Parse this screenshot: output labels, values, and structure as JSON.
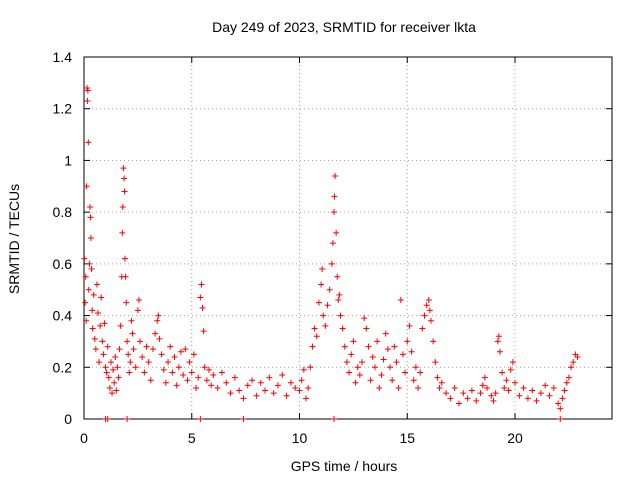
{
  "chart_data": {
    "type": "scatter",
    "title": "Day 249 of 2023, SRMTID for receiver lkta",
    "xlabel": "GPS time / hours",
    "ylabel": "SRMTID / TECUs",
    "xlim": [
      0,
      24.5
    ],
    "ylim": [
      0,
      1.4
    ],
    "xticks": [
      0,
      5,
      10,
      15,
      20
    ],
    "yticks": [
      0,
      0.2,
      0.4,
      0.6,
      0.8,
      1,
      1.2,
      1.4
    ],
    "xtick_labels": [
      "0",
      "5",
      "10",
      "15",
      "20"
    ],
    "ytick_labels": [
      "0",
      "0.2",
      "0.4",
      "0.6",
      "0.8",
      "1",
      "1.2",
      "1.4"
    ],
    "grid": true,
    "marker": "+",
    "color": "#ff0000",
    "series": [
      {
        "name": "SRMTID",
        "points": [
          [
            0.02,
            0.62
          ],
          [
            0.05,
            0.45
          ],
          [
            0.08,
            0.55
          ],
          [
            0.1,
            0.38
          ],
          [
            0.12,
            0.9
          ],
          [
            0.14,
            1.28
          ],
          [
            0.16,
            1.23
          ],
          [
            0.18,
            1.27
          ],
          [
            0.2,
            1.07
          ],
          [
            0.22,
            0.5
          ],
          [
            0.25,
            0.6
          ],
          [
            0.28,
            0.82
          ],
          [
            0.3,
            0.78
          ],
          [
            0.32,
            0.7
          ],
          [
            0.35,
            0.58
          ],
          [
            0.38,
            0.42
          ],
          [
            0.4,
            0.35
          ],
          [
            0.45,
            0.48
          ],
          [
            0.5,
            0.31
          ],
          [
            0.55,
            0.27
          ],
          [
            0.6,
            0.52
          ],
          [
            0.65,
            0.41
          ],
          [
            0.7,
            0.22
          ],
          [
            0.75,
            0.36
          ],
          [
            0.8,
            0.47
          ],
          [
            0.85,
            0.3
          ],
          [
            0.9,
            0.25
          ],
          [
            0.95,
            0.37
          ],
          [
            1.0,
            0.2
          ],
          [
            1.05,
            0.18
          ],
          [
            1.1,
            0.28
          ],
          [
            1.15,
            0.16
          ],
          [
            1.2,
            0.12
          ],
          [
            1.25,
            0.22
          ],
          [
            1.3,
            0.1
          ],
          [
            1.35,
            0.19
          ],
          [
            1.4,
            0.14
          ],
          [
            1.45,
            0.24
          ],
          [
            1.5,
            0.11
          ],
          [
            1.55,
            0.2
          ],
          [
            1.6,
            0.16
          ],
          [
            1.65,
            0.27
          ],
          [
            1.7,
            0.36
          ],
          [
            1.75,
            0.55
          ],
          [
            1.78,
            0.72
          ],
          [
            1.8,
            0.82
          ],
          [
            1.83,
            0.97
          ],
          [
            1.86,
            0.93
          ],
          [
            1.88,
            0.88
          ],
          [
            1.9,
            0.62
          ],
          [
            1.93,
            0.55
          ],
          [
            1.96,
            0.45
          ],
          [
            2.0,
            0.3
          ],
          [
            2.05,
            0.25
          ],
          [
            2.1,
            0.18
          ],
          [
            2.15,
            0.22
          ],
          [
            2.2,
            0.38
          ],
          [
            2.25,
            0.33
          ],
          [
            2.3,
            0.27
          ],
          [
            2.4,
            0.2
          ],
          [
            2.5,
            0.42
          ],
          [
            2.55,
            0.46
          ],
          [
            2.6,
            0.3
          ],
          [
            2.7,
            0.24
          ],
          [
            2.8,
            0.18
          ],
          [
            2.9,
            0.28
          ],
          [
            3.0,
            0.22
          ],
          [
            3.1,
            0.15
          ],
          [
            3.2,
            0.27
          ],
          [
            3.3,
            0.33
          ],
          [
            3.4,
            0.38
          ],
          [
            3.45,
            0.4
          ],
          [
            3.5,
            0.31
          ],
          [
            3.6,
            0.25
          ],
          [
            3.7,
            0.19
          ],
          [
            3.8,
            0.14
          ],
          [
            3.9,
            0.22
          ],
          [
            4.0,
            0.28
          ],
          [
            4.1,
            0.18
          ],
          [
            4.2,
            0.24
          ],
          [
            4.3,
            0.13
          ],
          [
            4.4,
            0.2
          ],
          [
            4.5,
            0.26
          ],
          [
            4.6,
            0.17
          ],
          [
            4.7,
            0.27
          ],
          [
            4.8,
            0.15
          ],
          [
            4.9,
            0.22
          ],
          [
            5.0,
            0.18
          ],
          [
            5.1,
            0.25
          ],
          [
            5.2,
            0.12
          ],
          [
            5.3,
            0.16
          ],
          [
            5.4,
            0.47
          ],
          [
            5.45,
            0.52
          ],
          [
            5.5,
            0.43
          ],
          [
            5.55,
            0.34
          ],
          [
            5.6,
            0.2
          ],
          [
            5.7,
            0.15
          ],
          [
            5.8,
            0.19
          ],
          [
            5.9,
            0.13
          ],
          [
            6.0,
            0.17
          ],
          [
            6.2,
            0.12
          ],
          [
            6.4,
            0.18
          ],
          [
            6.6,
            0.14
          ],
          [
            6.8,
            0.1
          ],
          [
            7.0,
            0.16
          ],
          [
            7.2,
            0.11
          ],
          [
            7.4,
            0.08
          ],
          [
            7.6,
            0.13
          ],
          [
            7.8,
            0.15
          ],
          [
            8.0,
            0.09
          ],
          [
            8.2,
            0.14
          ],
          [
            8.4,
            0.11
          ],
          [
            8.6,
            0.16
          ],
          [
            8.8,
            0.1
          ],
          [
            9.0,
            0.13
          ],
          [
            9.2,
            0.17
          ],
          [
            9.4,
            0.09
          ],
          [
            9.6,
            0.14
          ],
          [
            9.8,
            0.12
          ],
          [
            10.0,
            0.11
          ],
          [
            10.1,
            0.15
          ],
          [
            10.2,
            0.19
          ],
          [
            10.3,
            0.08
          ],
          [
            10.4,
            0.12
          ],
          [
            10.5,
            0.2
          ],
          [
            10.6,
            0.28
          ],
          [
            10.7,
            0.35
          ],
          [
            10.8,
            0.32
          ],
          [
            10.9,
            0.45
          ],
          [
            11.0,
            0.52
          ],
          [
            11.05,
            0.58
          ],
          [
            11.1,
            0.4
          ],
          [
            11.2,
            0.36
          ],
          [
            11.3,
            0.44
          ],
          [
            11.4,
            0.5
          ],
          [
            11.5,
            0.6
          ],
          [
            11.55,
            0.68
          ],
          [
            11.6,
            0.8
          ],
          [
            11.62,
            0.86
          ],
          [
            11.65,
            0.94
          ],
          [
            11.7,
            0.72
          ],
          [
            11.75,
            0.55
          ],
          [
            11.8,
            0.46
          ],
          [
            11.85,
            0.48
          ],
          [
            11.9,
            0.4
          ],
          [
            12.0,
            0.35
          ],
          [
            12.1,
            0.28
          ],
          [
            12.2,
            0.22
          ],
          [
            12.3,
            0.18
          ],
          [
            12.4,
            0.25
          ],
          [
            12.5,
            0.3
          ],
          [
            12.6,
            0.14
          ],
          [
            12.7,
            0.2
          ],
          [
            12.8,
            0.17
          ],
          [
            12.9,
            0.22
          ],
          [
            13.0,
            0.39
          ],
          [
            13.1,
            0.35
          ],
          [
            13.2,
            0.28
          ],
          [
            13.3,
            0.15
          ],
          [
            13.4,
            0.24
          ],
          [
            13.5,
            0.2
          ],
          [
            13.6,
            0.3
          ],
          [
            13.7,
            0.12
          ],
          [
            13.8,
            0.17
          ],
          [
            13.9,
            0.23
          ],
          [
            14.0,
            0.33
          ],
          [
            14.1,
            0.27
          ],
          [
            14.2,
            0.2
          ],
          [
            14.3,
            0.15
          ],
          [
            14.4,
            0.28
          ],
          [
            14.5,
            0.22
          ],
          [
            14.6,
            0.12
          ],
          [
            14.7,
            0.46
          ],
          [
            14.8,
            0.25
          ],
          [
            14.9,
            0.18
          ],
          [
            15.0,
            0.3
          ],
          [
            15.1,
            0.36
          ],
          [
            15.2,
            0.26
          ],
          [
            15.3,
            0.15
          ],
          [
            15.4,
            0.2
          ],
          [
            15.5,
            0.12
          ],
          [
            15.6,
            0.18
          ],
          [
            15.7,
            0.35
          ],
          [
            15.8,
            0.4
          ],
          [
            15.9,
            0.44
          ],
          [
            16.0,
            0.46
          ],
          [
            16.05,
            0.42
          ],
          [
            16.1,
            0.38
          ],
          [
            16.2,
            0.3
          ],
          [
            16.3,
            0.22
          ],
          [
            16.4,
            0.16
          ],
          [
            16.5,
            0.12
          ],
          [
            16.6,
            0.14
          ],
          [
            16.8,
            0.1
          ],
          [
            17.0,
            0.08
          ],
          [
            17.2,
            0.12
          ],
          [
            17.4,
            0.06
          ],
          [
            17.6,
            0.1
          ],
          [
            17.8,
            0.08
          ],
          [
            18.0,
            0.11
          ],
          [
            18.2,
            0.07
          ],
          [
            18.4,
            0.1
          ],
          [
            18.5,
            0.13
          ],
          [
            18.6,
            0.16
          ],
          [
            18.7,
            0.12
          ],
          [
            18.9,
            0.09
          ],
          [
            19.0,
            0.07
          ],
          [
            19.1,
            0.1
          ],
          [
            19.2,
            0.3
          ],
          [
            19.25,
            0.32
          ],
          [
            19.3,
            0.26
          ],
          [
            19.4,
            0.18
          ],
          [
            19.5,
            0.12
          ],
          [
            19.6,
            0.15
          ],
          [
            19.7,
            0.11
          ],
          [
            19.8,
            0.19
          ],
          [
            19.9,
            0.22
          ],
          [
            20.0,
            0.14
          ],
          [
            20.2,
            0.09
          ],
          [
            20.4,
            0.12
          ],
          [
            20.6,
            0.08
          ],
          [
            20.8,
            0.11
          ],
          [
            21.0,
            0.07
          ],
          [
            21.2,
            0.1
          ],
          [
            21.4,
            0.13
          ],
          [
            21.6,
            0.09
          ],
          [
            21.8,
            0.12
          ],
          [
            22.0,
            0.06
          ],
          [
            22.1,
            0.04
          ],
          [
            22.2,
            0.08
          ],
          [
            22.3,
            0.11
          ],
          [
            22.4,
            0.14
          ],
          [
            22.5,
            0.16
          ],
          [
            22.6,
            0.2
          ],
          [
            22.7,
            0.22
          ],
          [
            22.8,
            0.25
          ],
          [
            22.9,
            0.24
          ],
          [
            1.0,
            0.0
          ],
          [
            1.1,
            0.0
          ],
          [
            2.0,
            0.0
          ],
          [
            5.4,
            0.0
          ],
          [
            7.4,
            0.0
          ],
          [
            11.6,
            0.0
          ],
          [
            22.1,
            0.0
          ]
        ]
      }
    ]
  }
}
